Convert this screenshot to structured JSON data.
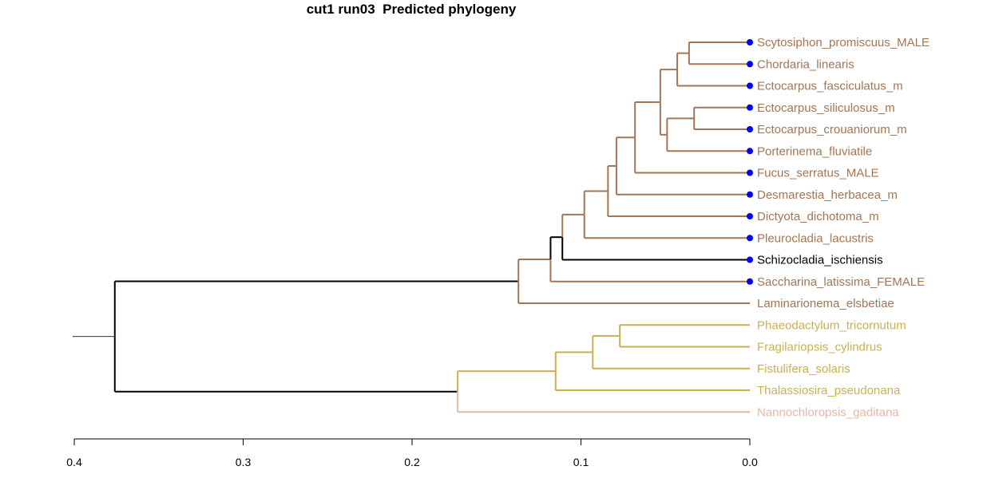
{
  "title": "cut1 run03  Predicted phylogeny",
  "colors": {
    "brown": "#a47552",
    "black": "#000000",
    "olive": "#c9b152",
    "pink": "#e2b9a6",
    "dot": "#0000ff",
    "axis": "#000000"
  },
  "axis": {
    "reversed": true,
    "range": [
      0.4,
      0.0
    ],
    "ticks": [
      {
        "value": 0.4,
        "label": "0.4"
      },
      {
        "value": 0.3,
        "label": "0.3"
      },
      {
        "value": 0.2,
        "label": "0.2"
      },
      {
        "value": 0.1,
        "label": "0.1"
      },
      {
        "value": 0.0,
        "label": "0.0"
      }
    ]
  },
  "leaves": [
    {
      "name": "Scytosiphon_promiscuus_MALE",
      "color": "brown",
      "dot": true
    },
    {
      "name": "Chordaria_linearis",
      "color": "brown",
      "dot": true
    },
    {
      "name": "Ectocarpus_fasciculatus_m",
      "color": "brown",
      "dot": true
    },
    {
      "name": "Ectocarpus_siliculosus_m",
      "color": "brown",
      "dot": true
    },
    {
      "name": "Ectocarpus_crouaniorum_m",
      "color": "brown",
      "dot": true
    },
    {
      "name": "Porterinema_fluviatile",
      "color": "brown",
      "dot": true
    },
    {
      "name": "Fucus_serratus_MALE",
      "color": "brown",
      "dot": true
    },
    {
      "name": "Desmarestia_herbacea_m",
      "color": "brown",
      "dot": true
    },
    {
      "name": "Dictyota_dichotoma_m",
      "color": "brown",
      "dot": true
    },
    {
      "name": "Pleurocladia_lacustris",
      "color": "brown",
      "dot": true
    },
    {
      "name": "Schizocladia_ischiensis",
      "color": "black",
      "dot": true
    },
    {
      "name": "Saccharina_latissima_FEMALE",
      "color": "brown",
      "dot": true
    },
    {
      "name": "Laminarionema_elsbetiae",
      "color": "brown",
      "dot": false
    },
    {
      "name": "Phaeodactylum_tricornutum",
      "color": "olive",
      "dot": false
    },
    {
      "name": "Fragilariopsis_cylindrus",
      "color": "olive",
      "dot": false
    },
    {
      "name": "Fistulifera_solaris",
      "color": "olive",
      "dot": false
    },
    {
      "name": "Thalassiosira_pseudonana",
      "color": "olive",
      "dot": false
    },
    {
      "name": "Nannochloropsis_gaditana",
      "color": "pink",
      "dot": false
    }
  ],
  "tree": {
    "depth": 0.376,
    "color": "black",
    "children": [
      {
        "depth": 0.137,
        "color": "black",
        "children": [
          {
            "depth": 0.118,
            "color": "brown",
            "children": [
              {
                "depth": 0.111,
                "color": "black",
                "children": [
                  {
                    "depth": 0.098,
                    "color": "brown",
                    "children": [
                      {
                        "depth": 0.084,
                        "color": "brown",
                        "children": [
                          {
                            "depth": 0.079,
                            "color": "brown",
                            "children": [
                              {
                                "depth": 0.068,
                                "color": "brown",
                                "children": [
                                  {
                                    "depth": 0.053,
                                    "color": "brown",
                                    "children": [
                                      {
                                        "depth": 0.043,
                                        "color": "brown",
                                        "children": [
                                          {
                                            "depth": 0.036,
                                            "color": "brown",
                                            "children": [
                                              {
                                                "leaf": 0,
                                                "color": "brown"
                                              },
                                              {
                                                "leaf": 1,
                                                "color": "brown"
                                              }
                                            ]
                                          },
                                          {
                                            "leaf": 2,
                                            "color": "brown"
                                          }
                                        ]
                                      },
                                      {
                                        "depth": 0.049,
                                        "color": "brown",
                                        "children": [
                                          {
                                            "depth": 0.033,
                                            "color": "brown",
                                            "children": [
                                              {
                                                "leaf": 3,
                                                "color": "brown"
                                              },
                                              {
                                                "leaf": 4,
                                                "color": "brown"
                                              }
                                            ]
                                          },
                                          {
                                            "leaf": 5,
                                            "color": "brown"
                                          }
                                        ]
                                      }
                                    ]
                                  },
                                  {
                                    "leaf": 6,
                                    "color": "brown"
                                  }
                                ]
                              },
                              {
                                "leaf": 7,
                                "color": "brown"
                              }
                            ]
                          },
                          {
                            "leaf": 8,
                            "color": "brown"
                          }
                        ]
                      },
                      {
                        "leaf": 9,
                        "color": "brown"
                      }
                    ]
                  },
                  {
                    "leaf": 10,
                    "color": "black"
                  }
                ]
              },
              {
                "leaf": 11,
                "color": "brown"
              }
            ]
          },
          {
            "leaf": 12,
            "color": "brown"
          }
        ]
      },
      {
        "depth": 0.173,
        "color": "black",
        "children": [
          {
            "depth": 0.115,
            "color": "olive",
            "children": [
              {
                "depth": 0.093,
                "color": "olive",
                "children": [
                  {
                    "depth": 0.077,
                    "color": "olive",
                    "children": [
                      {
                        "leaf": 13,
                        "color": "olive"
                      },
                      {
                        "leaf": 14,
                        "color": "olive"
                      }
                    ]
                  },
                  {
                    "leaf": 15,
                    "color": "olive"
                  }
                ]
              },
              {
                "leaf": 16,
                "color": "olive"
              }
            ]
          },
          {
            "leaf": 17,
            "color": "pink"
          }
        ]
      }
    ]
  }
}
